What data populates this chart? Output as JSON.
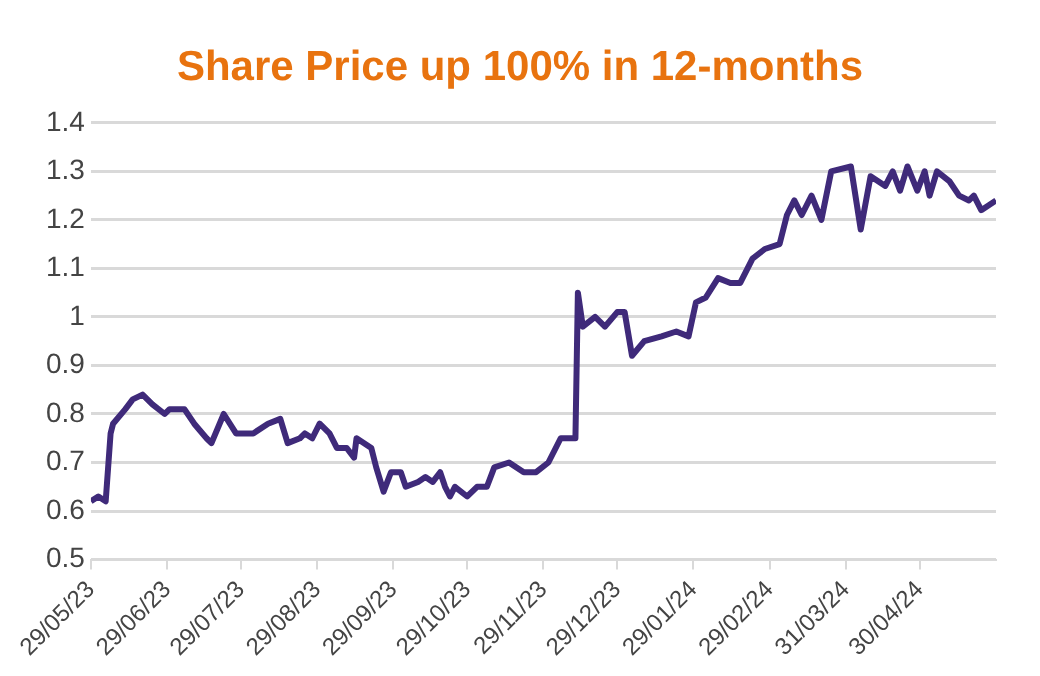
{
  "chart_data": {
    "type": "line",
    "title": "Share Price up 100% in 12-months",
    "x": [
      "2023-05-29",
      "2023-06-01",
      "2023-06-04",
      "2023-06-06",
      "2023-06-07",
      "2023-06-12",
      "2023-06-15",
      "2023-06-19",
      "2023-06-23",
      "2023-06-28",
      "2023-06-30",
      "2023-07-03",
      "2023-07-06",
      "2023-07-10",
      "2023-07-15",
      "2023-07-17",
      "2023-07-22",
      "2023-07-27",
      "2023-08-03",
      "2023-08-09",
      "2023-08-14",
      "2023-08-17",
      "2023-08-22",
      "2023-08-24",
      "2023-08-27",
      "2023-08-30",
      "2023-09-03",
      "2023-09-06",
      "2023-09-10",
      "2023-09-13",
      "2023-09-14",
      "2023-09-20",
      "2023-09-22",
      "2023-09-25",
      "2023-09-28",
      "2023-10-02",
      "2023-10-04",
      "2023-10-09",
      "2023-10-12",
      "2023-10-15",
      "2023-10-18",
      "2023-10-20",
      "2023-10-22",
      "2023-10-24",
      "2023-10-29",
      "2023-11-02",
      "2023-11-06",
      "2023-11-09",
      "2023-11-15",
      "2023-11-21",
      "2023-11-26",
      "2023-12-01",
      "2023-12-06",
      "2023-12-12",
      "2023-12-13",
      "2023-12-15",
      "2023-12-20",
      "2023-12-24",
      "2023-12-29",
      "2024-01-01",
      "2024-01-04",
      "2024-01-09",
      "2024-01-16",
      "2024-01-22",
      "2024-01-27",
      "2024-01-30",
      "2024-02-03",
      "2024-02-08",
      "2024-02-13",
      "2024-02-17",
      "2024-02-22",
      "2024-02-27",
      "2024-03-04",
      "2024-03-07",
      "2024-03-10",
      "2024-03-13",
      "2024-03-17",
      "2024-03-21",
      "2024-03-25",
      "2024-04-02",
      "2024-04-06",
      "2024-04-10",
      "2024-04-16",
      "2024-04-19",
      "2024-04-22",
      "2024-04-25",
      "2024-04-29",
      "2024-05-02",
      "2024-05-04",
      "2024-05-07",
      "2024-05-12",
      "2024-05-16",
      "2024-05-20",
      "2024-05-22",
      "2024-05-25",
      "2024-05-31"
    ],
    "series": [
      {
        "color": "#3f2a7a",
        "values": [
          0.62,
          0.63,
          0.62,
          0.76,
          0.78,
          0.81,
          0.83,
          0.84,
          0.82,
          0.8,
          0.81,
          0.81,
          0.81,
          0.78,
          0.75,
          0.74,
          0.8,
          0.76,
          0.76,
          0.78,
          0.79,
          0.74,
          0.75,
          0.76,
          0.75,
          0.78,
          0.76,
          0.73,
          0.73,
          0.71,
          0.75,
          0.73,
          0.69,
          0.64,
          0.68,
          0.68,
          0.65,
          0.66,
          0.67,
          0.66,
          0.68,
          0.65,
          0.63,
          0.65,
          0.63,
          0.65,
          0.65,
          0.69,
          0.7,
          0.68,
          0.68,
          0.7,
          0.75,
          0.75,
          1.05,
          0.98,
          1.0,
          0.98,
          1.01,
          1.01,
          0.92,
          0.95,
          0.96,
          0.97,
          0.96,
          1.03,
          1.04,
          1.08,
          1.07,
          1.07,
          1.12,
          1.14,
          1.15,
          1.21,
          1.24,
          1.21,
          1.25,
          1.2,
          1.3,
          1.31,
          1.18,
          1.29,
          1.27,
          1.3,
          1.26,
          1.31,
          1.26,
          1.3,
          1.25,
          1.3,
          1.28,
          1.25,
          1.24,
          1.25,
          1.22,
          1.24
        ]
      }
    ],
    "xlim": [
      "2023-05-29",
      "2024-05-31"
    ],
    "xticks": [
      {
        "value": "2023-05-29",
        "label": "29/05/23"
      },
      {
        "value": "2023-06-29",
        "label": "29/06/23"
      },
      {
        "value": "2023-07-29",
        "label": "29/07/23"
      },
      {
        "value": "2023-08-29",
        "label": "29/08/23"
      },
      {
        "value": "2023-09-29",
        "label": "29/09/23"
      },
      {
        "value": "2023-10-29",
        "label": "29/10/23"
      },
      {
        "value": "2023-11-29",
        "label": "29/11/23"
      },
      {
        "value": "2023-12-29",
        "label": "29/12/23"
      },
      {
        "value": "2024-01-29",
        "label": "29/01/24"
      },
      {
        "value": "2024-02-29",
        "label": "29/02/24"
      },
      {
        "value": "2024-03-31",
        "label": "31/03/24"
      },
      {
        "value": "2024-04-30",
        "label": "30/04/24"
      }
    ],
    "ylim": [
      0.5,
      1.4
    ],
    "yticks": [
      0.5,
      0.6,
      0.7,
      0.8,
      0.9,
      1,
      1.1,
      1.2,
      1.3,
      1.4
    ],
    "grid": "y",
    "legend": false,
    "marker": "none",
    "line_style": "solid"
  }
}
